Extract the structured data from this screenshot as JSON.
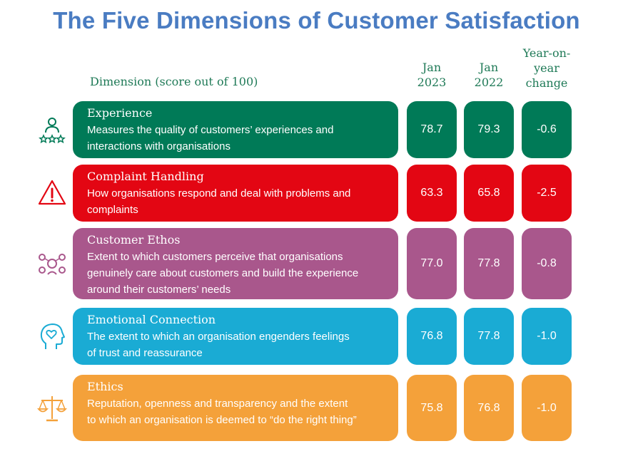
{
  "title": "The Five Dimensions of Customer Satisfaction",
  "headers": {
    "dimension": "Dimension (score out of 100)",
    "jan2023": [
      "Jan",
      "2023"
    ],
    "jan2022": [
      "Jan",
      "2022"
    ],
    "change": [
      "Year-on-",
      "year",
      "change"
    ]
  },
  "chart_data": {
    "type": "table",
    "title": "The Five Dimensions of Customer Satisfaction",
    "columns": [
      "Dimension (score out of 100)",
      "Jan 2023",
      "Jan 2022",
      "Year-on-year change"
    ],
    "rows": [
      {
        "name": "Experience",
        "description": "Measures the quality of customers’ experiences and interactions with organisations",
        "lines": [
          "Measures the quality of customers’ experiences and",
          "interactions with organisations"
        ],
        "jan2023": "78.7",
        "jan2022": "79.3",
        "change": "-0.6",
        "color": "#007a57",
        "icon": "customer-rating-icon"
      },
      {
        "name": "Complaint Handling",
        "description": "How organisations respond and deal with problems and complaints",
        "lines": [
          "How organisations respond and deal with problems and",
          "complaints"
        ],
        "jan2023": "63.3",
        "jan2022": "65.8",
        "change": "-2.5",
        "color": "#e30613",
        "icon": "warning-triangle-icon"
      },
      {
        "name": "Customer Ethos",
        "description": "Extent to which customers perceive that organisations genuinely care about customers and build the experience around their customers’ needs",
        "lines": [
          "Extent to which customers perceive that organisations",
          "genuinely care about customers and build the experience",
          "around their customers’ needs"
        ],
        "jan2023": "77.0",
        "jan2022": "77.8",
        "change": "-0.8",
        "color": "#a9578c",
        "icon": "people-network-icon"
      },
      {
        "name": "Emotional Connection",
        "description": "The extent to which an organisation engenders feelings of trust and reassurance",
        "lines": [
          "The extent to which an organisation engenders feelings",
          "of trust and reassurance"
        ],
        "jan2023": "76.8",
        "jan2022": "77.8",
        "change": "-1.0",
        "color": "#1aabd4",
        "icon": "head-heart-icon"
      },
      {
        "name": "Ethics",
        "description": "Reputation, openness and transparency and the extent to which an organisation is deemed to “do the right thing”",
        "lines": [
          "Reputation, openness and transparency and the extent",
          "to which an organisation is deemed to “do the right thing”"
        ],
        "jan2023": "75.8",
        "jan2022": "76.8",
        "change": "-1.0",
        "color": "#f4a13a",
        "icon": "scales-icon"
      }
    ]
  }
}
